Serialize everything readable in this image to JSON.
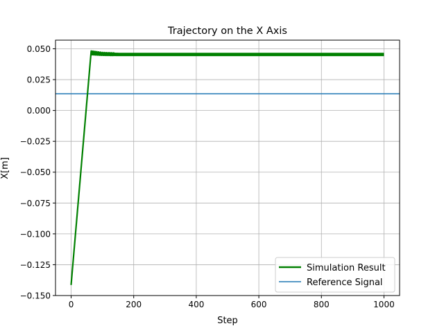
{
  "chart_data": {
    "type": "line",
    "title": "Trajectory on the X Axis",
    "xlabel": "Step",
    "ylabel": "X[m]",
    "xlim": [
      -50,
      1050
    ],
    "ylim": [
      -0.15,
      0.057
    ],
    "xticks": [
      0,
      200,
      400,
      600,
      800,
      1000
    ],
    "xtick_labels": [
      "0",
      "200",
      "400",
      "600",
      "800",
      "1000"
    ],
    "yticks": [
      -0.15,
      -0.125,
      -0.1,
      -0.075,
      -0.05,
      -0.025,
      0.0,
      0.025,
      0.05
    ],
    "ytick_labels": [
      "−0.150",
      "−0.125",
      "−0.100",
      "−0.075",
      "−0.050",
      "−0.025",
      "0.000",
      "0.025",
      "0.050"
    ],
    "grid": true,
    "legend_position": "lower right",
    "series": [
      {
        "name": "Simulation Result",
        "color": "#008000",
        "style": "thick-line",
        "rise": {
          "x": [
            0,
            64
          ],
          "y": [
            -0.141,
            0.048
          ]
        },
        "oscillation": {
          "x_start": 64,
          "x_end": 999,
          "upper": [
            [
              64,
              0.0483
            ],
            [
              100,
              0.047
            ],
            [
              150,
              0.0465
            ],
            [
              999,
              0.0465
            ]
          ],
          "lower": [
            [
              64,
              0.045
            ],
            [
              100,
              0.0445
            ],
            [
              150,
              0.0443
            ],
            [
              999,
              0.0443
            ]
          ]
        }
      },
      {
        "name": "Reference Signal",
        "color": "#1f77b4",
        "style": "line",
        "y": 0.0135
      }
    ]
  }
}
